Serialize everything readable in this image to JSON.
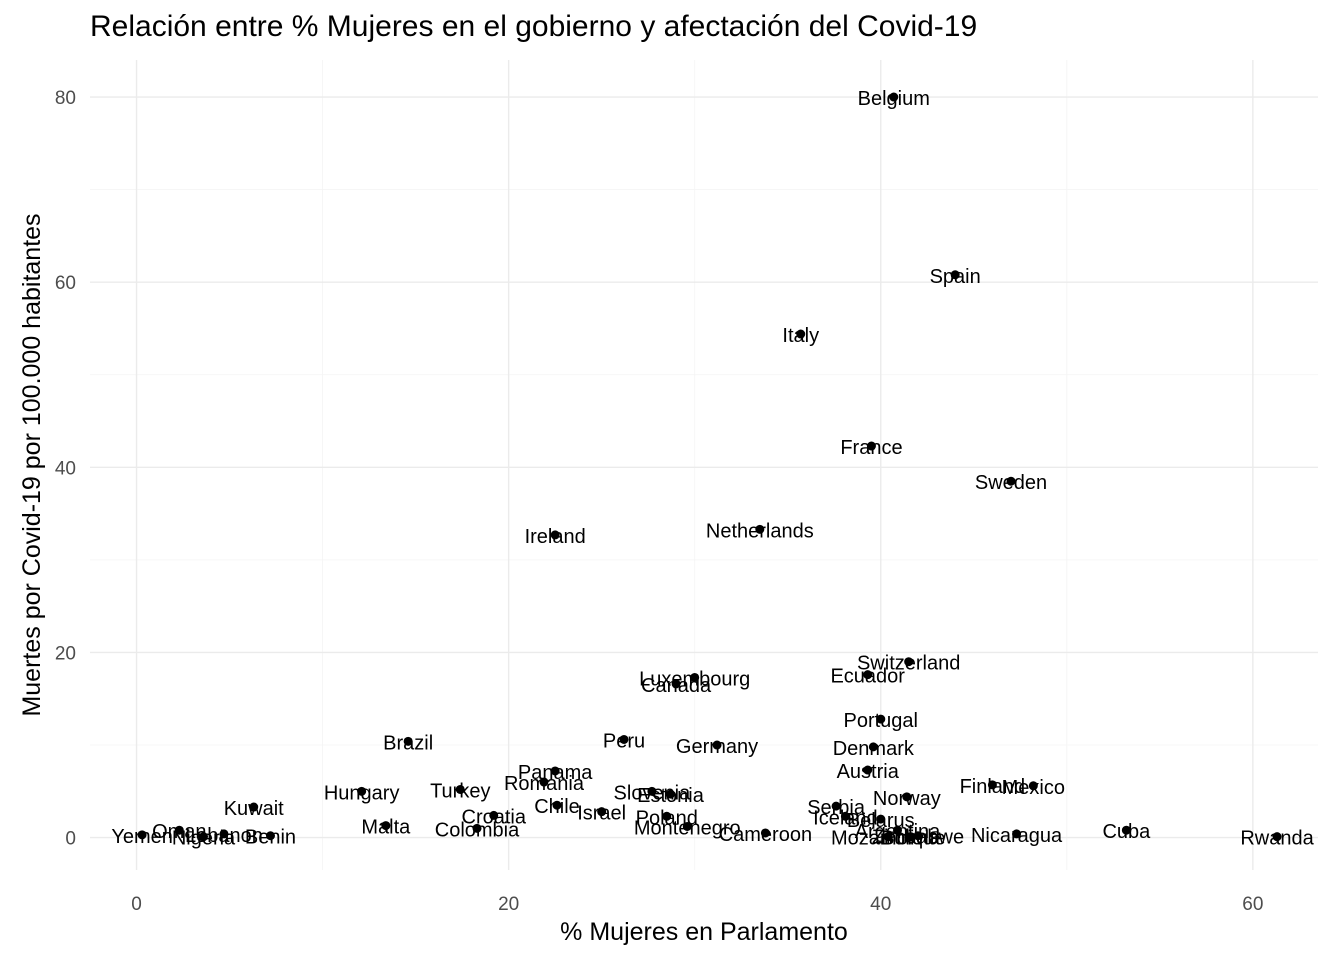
{
  "chart_data": {
    "type": "scatter",
    "title": "Relación entre % Mujeres en el gobierno y afectación del Covid-19",
    "xlabel": "% Mujeres en Parlamento",
    "ylabel": "Muertes por Covid-19 por 100.000 habitantes",
    "xlim": [
      -2.5,
      63.5
    ],
    "ylim": [
      -3.5,
      84
    ],
    "xticks": [
      0,
      20,
      40,
      60
    ],
    "yticks": [
      0,
      20,
      40,
      60,
      80
    ],
    "grid": true,
    "points": [
      {
        "label": "Belgium",
        "x": 40.7,
        "y": 80.0
      },
      {
        "label": "Spain",
        "x": 44.0,
        "y": 60.8
      },
      {
        "label": "Italy",
        "x": 35.7,
        "y": 54.4
      },
      {
        "label": "France",
        "x": 39.5,
        "y": 42.3
      },
      {
        "label": "Sweden",
        "x": 47.0,
        "y": 38.5
      },
      {
        "label": "Netherlands",
        "x": 33.5,
        "y": 33.3
      },
      {
        "label": "Ireland",
        "x": 22.5,
        "y": 32.7
      },
      {
        "label": "Switzerland",
        "x": 41.5,
        "y": 19.0
      },
      {
        "label": "Ecuador",
        "x": 39.3,
        "y": 17.6
      },
      {
        "label": "Luxembourg",
        "x": 30.0,
        "y": 17.3
      },
      {
        "label": "Canada",
        "x": 29.0,
        "y": 16.6
      },
      {
        "label": "Portugal",
        "x": 40.0,
        "y": 12.8
      },
      {
        "label": "Brazil",
        "x": 14.6,
        "y": 10.4
      },
      {
        "label": "Peru",
        "x": 26.2,
        "y": 10.6
      },
      {
        "label": "Germany",
        "x": 31.2,
        "y": 10.0
      },
      {
        "label": "Denmark",
        "x": 39.6,
        "y": 9.8
      },
      {
        "label": "Panama",
        "x": 22.5,
        "y": 7.2
      },
      {
        "label": "Austria",
        "x": 39.3,
        "y": 7.3
      },
      {
        "label": "Romania",
        "x": 21.9,
        "y": 6.0
      },
      {
        "label": "Finland",
        "x": 46.0,
        "y": 5.7
      },
      {
        "label": "Mexico",
        "x": 48.2,
        "y": 5.6
      },
      {
        "label": "Hungary",
        "x": 12.1,
        "y": 5.0
      },
      {
        "label": "Turkey",
        "x": 17.4,
        "y": 5.2
      },
      {
        "label": "Slovenia",
        "x": 27.7,
        "y": 5.0
      },
      {
        "label": "Estonia",
        "x": 28.7,
        "y": 4.7
      },
      {
        "label": "Norway",
        "x": 41.4,
        "y": 4.4
      },
      {
        "label": "Kuwait",
        "x": 6.3,
        "y": 3.3
      },
      {
        "label": "Chile",
        "x": 22.6,
        "y": 3.5
      },
      {
        "label": "Serbia",
        "x": 37.6,
        "y": 3.4
      },
      {
        "label": "Israel",
        "x": 25.0,
        "y": 2.8
      },
      {
        "label": "Iceland",
        "x": 38.1,
        "y": 2.3
      },
      {
        "label": "Poland",
        "x": 28.5,
        "y": 2.3
      },
      {
        "label": "Croatia",
        "x": 19.2,
        "y": 2.4
      },
      {
        "label": "Belarus",
        "x": 40.0,
        "y": 2.0
      },
      {
        "label": "Montenegro",
        "x": 29.6,
        "y": 1.2
      },
      {
        "label": "Malta",
        "x": 13.4,
        "y": 1.3
      },
      {
        "label": "Colombia",
        "x": 18.3,
        "y": 1.0
      },
      {
        "label": "Argentina",
        "x": 40.9,
        "y": 0.8
      },
      {
        "label": "Cuba",
        "x": 53.2,
        "y": 0.8
      },
      {
        "label": "Oman",
        "x": 2.3,
        "y": 0.8
      },
      {
        "label": "Lebanon",
        "x": 4.7,
        "y": 0.4
      },
      {
        "label": "Cameroon",
        "x": 33.8,
        "y": 0.5
      },
      {
        "label": "Nicaragua",
        "x": 47.3,
        "y": 0.4
      },
      {
        "label": "Yemen",
        "x": 0.3,
        "y": 0.3
      },
      {
        "label": "Nigeria",
        "x": 3.6,
        "y": 0.1
      },
      {
        "label": "Benin",
        "x": 7.2,
        "y": 0.2
      },
      {
        "label": "Rwanda",
        "x": 61.3,
        "y": 0.1
      },
      {
        "label": "Mozambique",
        "x": 40.4,
        "y": 0.1
      },
      {
        "label": "Zimbabwe",
        "x": 42.0,
        "y": 0.2
      },
      {
        "label": "Bolivia",
        "x": 41.6,
        "y": 0.1
      }
    ]
  }
}
